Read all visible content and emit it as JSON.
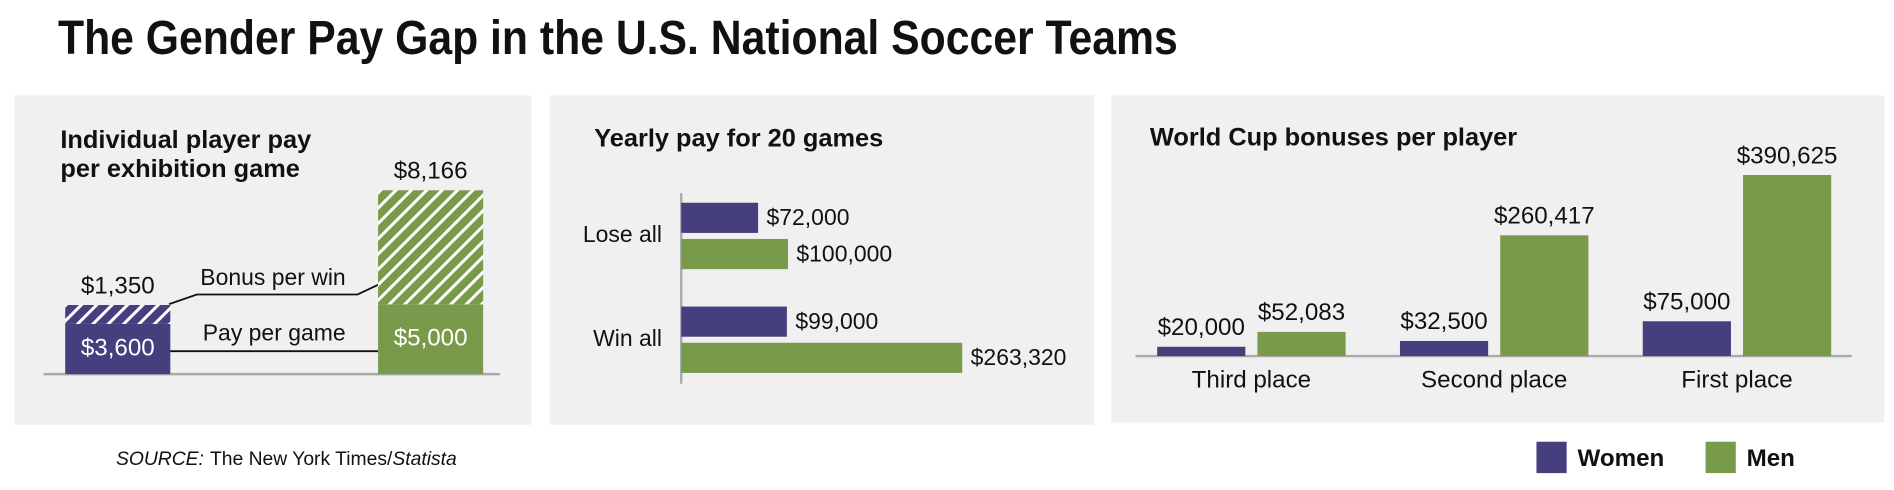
{
  "title": "The Gender Pay Gap in the U.S. National Soccer Teams",
  "source": [
    "SOURCE:",
    "The New York Times/",
    "Statista"
  ],
  "chart_data": [
    {
      "type": "stacked-bar",
      "title": [
        "Individual player pay",
        "per exhibition game"
      ],
      "categories": [
        null,
        null
      ],
      "colors": [
        "#463f7e",
        "#7a9a4b"
      ],
      "ylim": [
        0,
        14000
      ],
      "series": [
        {
          "name": "Pay per game",
          "values": [
            3600,
            5000
          ],
          "value_labels": [
            "$3,600",
            "$5,000"
          ]
        },
        {
          "name": "Bonus per win",
          "hatch": true,
          "values": [
            1350,
            8166
          ],
          "value_labels": [
            "$1,350",
            "$8,166"
          ]
        }
      ]
    },
    {
      "type": "hbar",
      "title": "Yearly pay for 20 games",
      "categories": [
        "Lose all",
        "Win all"
      ],
      "xlim": [
        0,
        300000
      ],
      "series": [
        {
          "color": "#463f7e",
          "values": [
            72000,
            99000
          ],
          "value_labels": [
            "$72,000",
            "$99,000"
          ]
        },
        {
          "color": "#7a9a4b",
          "values": [
            100000,
            263320
          ],
          "value_labels": [
            "$100,000",
            "$263,320"
          ]
        }
      ]
    },
    {
      "type": "grouped-bar",
      "title": "World Cup bonuses per player",
      "categories": [
        "Third place",
        "Second place",
        "First place"
      ],
      "ylim": [
        0,
        400000
      ],
      "series": [
        {
          "name": "Women",
          "color": "#463f7e",
          "values": [
            20000,
            32500,
            75000
          ],
          "value_labels": [
            "$20,000",
            "$32,500",
            "$75,000"
          ]
        },
        {
          "name": "Men",
          "color": "#7a9a4b",
          "values": [
            52083,
            260417,
            390625
          ],
          "value_labels": [
            "$52,083",
            "$260,417",
            "$390,625"
          ]
        }
      ]
    }
  ]
}
